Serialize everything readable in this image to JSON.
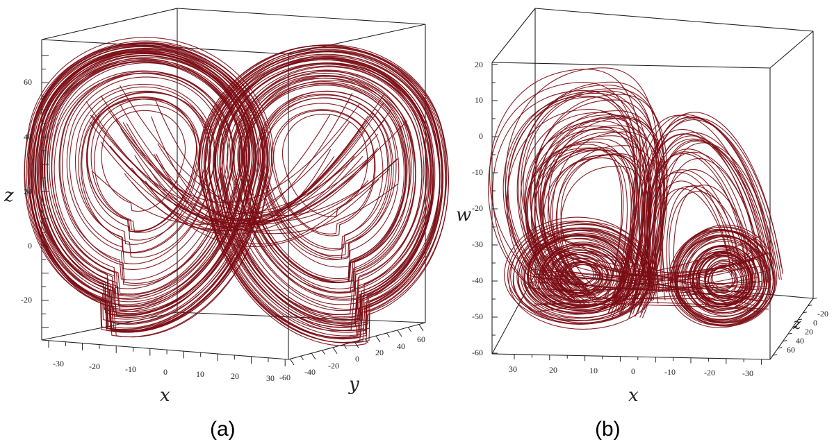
{
  "chart_data": [
    {
      "type": "line",
      "projection": "3d",
      "panel_label": "(a)",
      "xlabel": "x",
      "ylabel": "y",
      "zlabel": "z",
      "x_ticks": [
        "-30",
        "-20",
        "-10",
        "0",
        "10",
        "20",
        "30"
      ],
      "y_ticks": [
        "-60",
        "-40",
        "-20",
        "0",
        "20",
        "40",
        "60"
      ],
      "z_ticks": [
        "60",
        "40",
        "20",
        "0",
        "-20"
      ],
      "xlim": [
        -35,
        35
      ],
      "ylim": [
        -60,
        60
      ],
      "zlim": [
        -30,
        75
      ],
      "attractor": {
        "lobes": 2,
        "left_center": [
          -14,
          0,
          32
        ],
        "right_center": [
          14,
          0,
          32
        ]
      },
      "line_color": "#7b0c14"
    },
    {
      "type": "line",
      "projection": "3d",
      "panel_label": "(b)",
      "xlabel": "x",
      "ylabel": "z",
      "zlabel": "w",
      "x_ticks": [
        "30",
        "20",
        "10",
        "0",
        "-10",
        "-20",
        "-30"
      ],
      "y_ticks": [
        "-20",
        "0",
        "20",
        "40",
        "60"
      ],
      "z_ticks": [
        "20",
        "10",
        "0",
        "-10",
        "-20",
        "-30",
        "-40",
        "-50",
        "-60"
      ],
      "xlim": [
        -35,
        35
      ],
      "ylim": [
        -20,
        60
      ],
      "zlim": [
        -60,
        20
      ],
      "attractor": {
        "lobes": 2,
        "left_center": [
          15,
          0,
          -42
        ],
        "right_center": [
          -22,
          0,
          -45
        ]
      },
      "line_color": "#7b0c14"
    }
  ]
}
